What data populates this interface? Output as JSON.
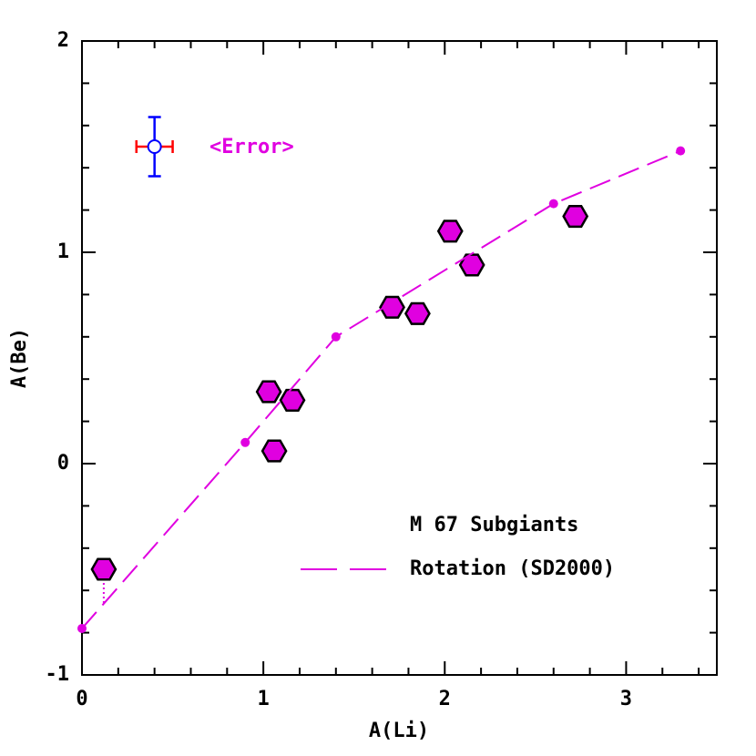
{
  "chart_data": {
    "type": "scatter",
    "x_label": "A(Li)",
    "y_label": "A(Be)",
    "xlim": [
      0,
      3.5
    ],
    "ylim": [
      -1,
      2
    ],
    "xticks": [
      0,
      1,
      2,
      3
    ],
    "yticks": [
      -1,
      0,
      1,
      2
    ],
    "xminorticks": [
      0.2,
      0.4,
      0.6,
      0.8,
      1.2,
      1.4,
      1.6,
      1.8,
      2.2,
      2.4,
      2.6,
      2.8,
      3.2,
      3.4
    ],
    "yminorticks": [
      -0.8,
      -0.6,
      -0.4,
      -0.2,
      0.2,
      0.4,
      0.6,
      0.8,
      1.2,
      1.4,
      1.6,
      1.8
    ],
    "series": [
      {
        "name": "M 67 Subgiants",
        "kind": "points",
        "color": "#e000e0",
        "x": [
          0.12,
          1.03,
          1.16,
          1.06,
          1.71,
          1.85,
          2.03,
          2.15,
          2.72
        ],
        "y": [
          -0.5,
          0.34,
          0.3,
          0.06,
          0.74,
          0.71,
          1.1,
          0.94,
          1.17
        ],
        "limit_line": {
          "x": 0.12,
          "y": [
            -0.5,
            -0.66
          ]
        }
      },
      {
        "name": "Rotation (SD2000)",
        "kind": "dashed-line",
        "color": "#e000e0",
        "x": [
          0,
          0.9,
          1.4,
          2.6,
          3.3
        ],
        "y": [
          -0.78,
          0.1,
          0.6,
          1.23,
          1.48
        ]
      }
    ],
    "error_bar": {
      "label": "<Error>",
      "x": 0.4,
      "y": 1.5,
      "xerr": 0.1,
      "yerr": 0.14,
      "xerr_color": "#ff0000",
      "yerr_color": "#0000ff",
      "label_color": "#e000e0"
    }
  }
}
